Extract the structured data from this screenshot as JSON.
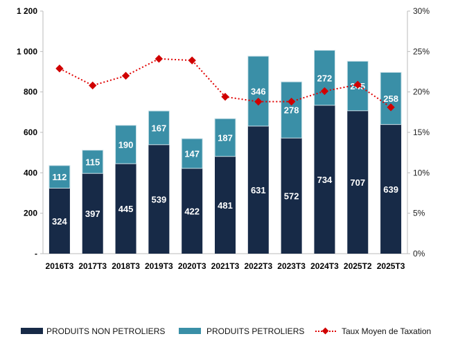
{
  "chart_data": {
    "type": "bar",
    "stacked": true,
    "categories": [
      "2016T3",
      "2017T3",
      "2018T3",
      "2019T3",
      "2020T3",
      "2021T3",
      "2022T3",
      "2023T3",
      "2024T3",
      "2025T2",
      "2025T3"
    ],
    "series": [
      {
        "name": "PRODUITS NON PETROLIERS",
        "values": [
          324,
          397,
          445,
          539,
          422,
          481,
          631,
          572,
          734,
          707,
          639
        ],
        "color": "#172a47",
        "axis": "left",
        "kind": "bar"
      },
      {
        "name": "PRODUITS PETROLIERS",
        "values": [
          112,
          115,
          190,
          167,
          147,
          187,
          346,
          278,
          272,
          245,
          258
        ],
        "color": "#3a8fa7",
        "axis": "left",
        "kind": "bar"
      },
      {
        "name": "Taux Moyen de Taxation",
        "values": [
          22.9,
          20.8,
          22.0,
          24.1,
          23.9,
          19.4,
          18.8,
          18.8,
          20.1,
          20.9,
          18.1
        ],
        "color": "#e00000",
        "axis": "right",
        "kind": "line",
        "unit": "%"
      }
    ],
    "left_ticks": [
      "-",
      "200",
      "400",
      "600",
      "800",
      "1 000",
      "1 200"
    ],
    "right_ticks": [
      "0%",
      "5%",
      "10%",
      "15%",
      "20%",
      "25%",
      "30%"
    ],
    "ylim": [
      0,
      1200
    ],
    "y2lim": [
      0,
      30
    ],
    "legend_position": "bottom",
    "title": "",
    "xlabel": "",
    "ylabel": ""
  }
}
